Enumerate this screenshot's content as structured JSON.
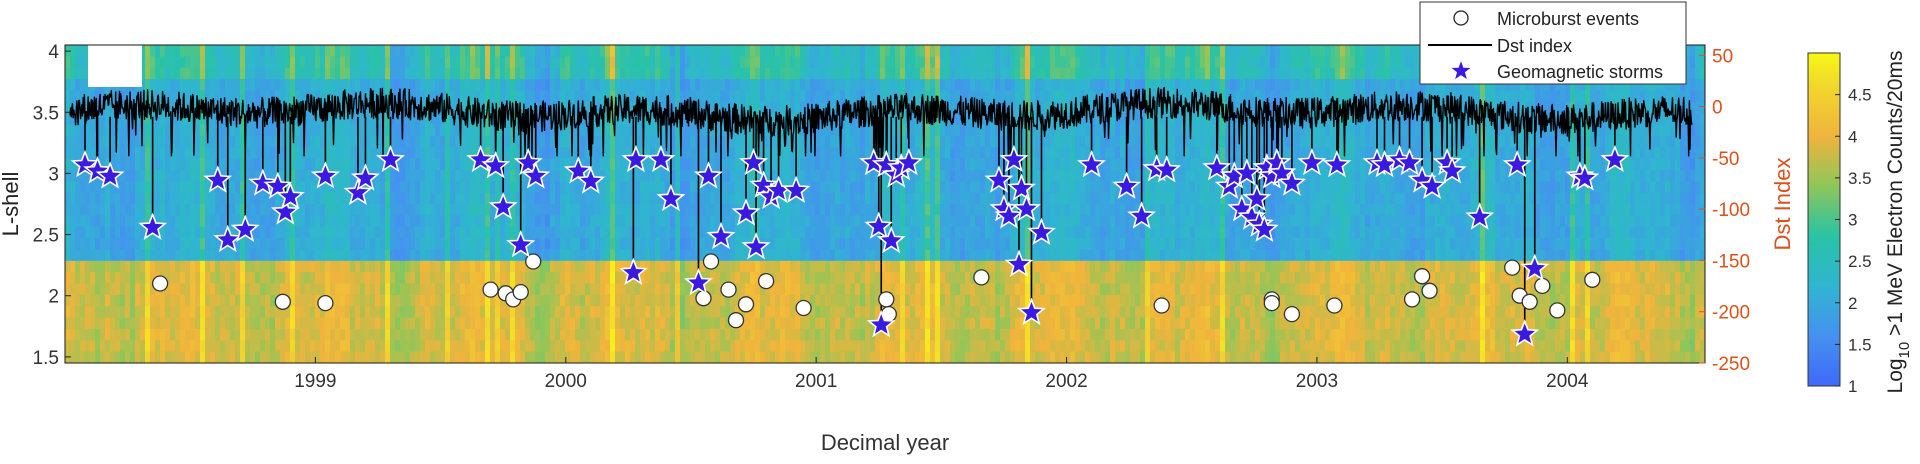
{
  "chart_data": {
    "type": "heatmap",
    "title": "",
    "xlabel": "Decimal year",
    "ylabel_left": "L-shell",
    "ylabel_right": "Dst Index",
    "colorbar_label_prefix": "Log",
    "colorbar_label_sub": "10",
    "colorbar_label_suffix": " >1 MeV Electron Counts/20ms",
    "xlim": [
      1998.0,
      2004.55
    ],
    "ylim_left": [
      1.45,
      4.05
    ],
    "ylim_right": [
      -250,
      60
    ],
    "clim": [
      1,
      5
    ],
    "x_ticks": [
      1999,
      2000,
      2001,
      2002,
      2003,
      2004
    ],
    "x_tick_labels": [
      "1999",
      "2000",
      "2001",
      "2002",
      "2003",
      "2004"
    ],
    "y_left_ticks": [
      1.5,
      2,
      2.5,
      3,
      3.5,
      4
    ],
    "y_left_tick_labels": [
      "1.5",
      "2",
      "2.5",
      "3",
      "3.5",
      "4"
    ],
    "y_right_ticks": [
      -250,
      -200,
      -150,
      -100,
      -50,
      0,
      50
    ],
    "y_right_tick_labels": [
      "-250",
      "-200",
      "-150",
      "-100",
      "-50",
      "0",
      "50"
    ],
    "colorbar_ticks": [
      1,
      1.5,
      2,
      2.5,
      3,
      3.5,
      4,
      4.5
    ],
    "colorbar_tick_labels": [
      "1",
      "1.5",
      "2",
      "2.5",
      "3",
      "3.5",
      "4",
      "4.5"
    ],
    "legend_position": "top-right",
    "legend": [
      {
        "name": "Microburst events",
        "marker": "circle"
      },
      {
        "name": "Dst index",
        "marker": "line"
      },
      {
        "name": "Geomagnetic storms",
        "marker": "star"
      }
    ],
    "colors": {
      "dst_line": "#000000",
      "storm_fill": "#3a1ae0",
      "storm_edge": "#ffffff",
      "microburst_fill": "#ffffff",
      "microburst_edge": "#333333",
      "right_axis": "#d9531e"
    },
    "microburst_events": [
      {
        "x": 1998.38,
        "y": 2.1
      },
      {
        "x": 1998.87,
        "y": 1.95
      },
      {
        "x": 1999.04,
        "y": 1.94
      },
      {
        "x": 1999.7,
        "y": 2.05
      },
      {
        "x": 1999.76,
        "y": 2.02
      },
      {
        "x": 1999.79,
        "y": 1.97
      },
      {
        "x": 1999.82,
        "y": 2.03
      },
      {
        "x": 1999.87,
        "y": 2.28
      },
      {
        "x": 2000.55,
        "y": 1.98
      },
      {
        "x": 2000.58,
        "y": 2.28
      },
      {
        "x": 2000.65,
        "y": 2.05
      },
      {
        "x": 2000.68,
        "y": 1.8
      },
      {
        "x": 2000.72,
        "y": 1.93
      },
      {
        "x": 2000.8,
        "y": 2.12
      },
      {
        "x": 2000.95,
        "y": 1.9
      },
      {
        "x": 2001.28,
        "y": 1.97
      },
      {
        "x": 2001.29,
        "y": 1.85
      },
      {
        "x": 2001.66,
        "y": 2.15
      },
      {
        "x": 2002.38,
        "y": 1.92
      },
      {
        "x": 2002.82,
        "y": 1.97
      },
      {
        "x": 2002.82,
        "y": 1.94
      },
      {
        "x": 2002.9,
        "y": 1.85
      },
      {
        "x": 2003.07,
        "y": 1.92
      },
      {
        "x": 2003.38,
        "y": 1.97
      },
      {
        "x": 2003.42,
        "y": 2.16
      },
      {
        "x": 2003.45,
        "y": 2.04
      },
      {
        "x": 2003.78,
        "y": 2.23
      },
      {
        "x": 2003.81,
        "y": 2.0
      },
      {
        "x": 2003.85,
        "y": 1.95
      },
      {
        "x": 2003.9,
        "y": 2.08
      },
      {
        "x": 2003.96,
        "y": 1.88
      },
      {
        "x": 2004.1,
        "y": 2.13
      }
    ],
    "geomagnetic_storms": [
      {
        "x": 1998.08,
        "dst": -57
      },
      {
        "x": 1998.13,
        "dst": -63
      },
      {
        "x": 1998.18,
        "dst": -68
      },
      {
        "x": 1998.35,
        "dst": -118
      },
      {
        "x": 1998.61,
        "dst": -72
      },
      {
        "x": 1998.65,
        "dst": -130
      },
      {
        "x": 1998.72,
        "dst": -120
      },
      {
        "x": 1998.79,
        "dst": -75
      },
      {
        "x": 1998.85,
        "dst": -78
      },
      {
        "x": 1998.88,
        "dst": -103
      },
      {
        "x": 1998.9,
        "dst": -88
      },
      {
        "x": 1999.04,
        "dst": -68
      },
      {
        "x": 1999.17,
        "dst": -84
      },
      {
        "x": 1999.2,
        "dst": -70
      },
      {
        "x": 1999.3,
        "dst": -52
      },
      {
        "x": 1999.66,
        "dst": -52
      },
      {
        "x": 1999.72,
        "dst": -58
      },
      {
        "x": 1999.75,
        "dst": -98
      },
      {
        "x": 1999.82,
        "dst": -135
      },
      {
        "x": 1999.85,
        "dst": -55
      },
      {
        "x": 1999.88,
        "dst": -68
      },
      {
        "x": 2000.05,
        "dst": -63
      },
      {
        "x": 2000.1,
        "dst": -73
      },
      {
        "x": 2000.27,
        "dst": -162
      },
      {
        "x": 2000.28,
        "dst": -52
      },
      {
        "x": 2000.38,
        "dst": -52
      },
      {
        "x": 2000.42,
        "dst": -90
      },
      {
        "x": 2000.53,
        "dst": -172
      },
      {
        "x": 2000.57,
        "dst": -68
      },
      {
        "x": 2000.62,
        "dst": -127
      },
      {
        "x": 2000.72,
        "dst": -104
      },
      {
        "x": 2000.75,
        "dst": -55
      },
      {
        "x": 2000.76,
        "dst": -137
      },
      {
        "x": 2000.79,
        "dst": -77
      },
      {
        "x": 2000.82,
        "dst": -88
      },
      {
        "x": 2000.85,
        "dst": -82
      },
      {
        "x": 2000.92,
        "dst": -82
      },
      {
        "x": 2001.23,
        "dst": -55
      },
      {
        "x": 2001.25,
        "dst": -117
      },
      {
        "x": 2001.26,
        "dst": -213
      },
      {
        "x": 2001.28,
        "dst": -57
      },
      {
        "x": 2001.3,
        "dst": -131
      },
      {
        "x": 2001.32,
        "dst": -67
      },
      {
        "x": 2001.34,
        "dst": -60
      },
      {
        "x": 2001.37,
        "dst": -55
      },
      {
        "x": 2001.73,
        "dst": -72
      },
      {
        "x": 2001.75,
        "dst": -100
      },
      {
        "x": 2001.77,
        "dst": -107
      },
      {
        "x": 2001.79,
        "dst": -52
      },
      {
        "x": 2001.81,
        "dst": -154
      },
      {
        "x": 2001.82,
        "dst": -80
      },
      {
        "x": 2001.84,
        "dst": -100
      },
      {
        "x": 2001.86,
        "dst": -201
      },
      {
        "x": 2001.9,
        "dst": -123
      },
      {
        "x": 2002.1,
        "dst": -57
      },
      {
        "x": 2002.24,
        "dst": -78
      },
      {
        "x": 2002.3,
        "dst": -107
      },
      {
        "x": 2002.36,
        "dst": -61
      },
      {
        "x": 2002.4,
        "dst": -62
      },
      {
        "x": 2002.6,
        "dst": -60
      },
      {
        "x": 2002.65,
        "dst": -78
      },
      {
        "x": 2002.67,
        "dst": -68
      },
      {
        "x": 2002.7,
        "dst": -100
      },
      {
        "x": 2002.72,
        "dst": -65
      },
      {
        "x": 2002.74,
        "dst": -108
      },
      {
        "x": 2002.76,
        "dst": -90
      },
      {
        "x": 2002.77,
        "dst": -115
      },
      {
        "x": 2002.79,
        "dst": -120
      },
      {
        "x": 2002.8,
        "dst": -60
      },
      {
        "x": 2002.82,
        "dst": -68
      },
      {
        "x": 2002.84,
        "dst": -55
      },
      {
        "x": 2002.86,
        "dst": -65
      },
      {
        "x": 2002.9,
        "dst": -75
      },
      {
        "x": 2002.98,
        "dst": -55
      },
      {
        "x": 2003.08,
        "dst": -57
      },
      {
        "x": 2003.24,
        "dst": -55
      },
      {
        "x": 2003.27,
        "dst": -57
      },
      {
        "x": 2003.33,
        "dst": -52
      },
      {
        "x": 2003.37,
        "dst": -55
      },
      {
        "x": 2003.42,
        "dst": -72
      },
      {
        "x": 2003.46,
        "dst": -78
      },
      {
        "x": 2003.52,
        "dst": -55
      },
      {
        "x": 2003.54,
        "dst": -63
      },
      {
        "x": 2003.65,
        "dst": -108
      },
      {
        "x": 2003.8,
        "dst": -57
      },
      {
        "x": 2003.83,
        "dst": -222
      },
      {
        "x": 2003.87,
        "dst": -158
      },
      {
        "x": 2004.05,
        "dst": -68
      },
      {
        "x": 2004.07,
        "dst": -70
      },
      {
        "x": 2004.19,
        "dst": -52
      }
    ]
  }
}
